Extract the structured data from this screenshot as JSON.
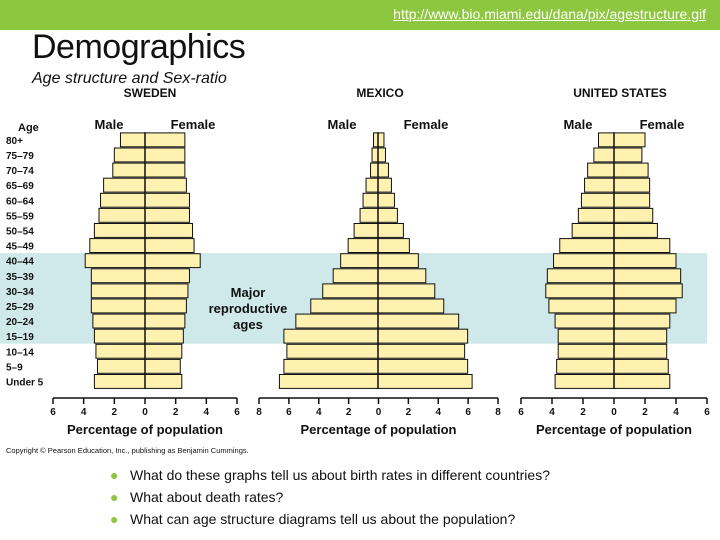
{
  "slide": {
    "url": "http://www.bio.miami.edu/dana/pix/agestructure.gif",
    "title": "Demographics",
    "subtitle": "Age structure and Sex-ratio",
    "copyright": "Copyright © Pearson Education, Inc., publishing as Benjamin Cummings.",
    "bullets": [
      "What do these graphs tell us about birth rates in different countries?",
      "What about death rates?",
      "What can age structure diagrams tell us about the population?"
    ],
    "accent_color": "#8dc63f",
    "bar_color": "#fff1b0",
    "band_color": "#cfe8ea"
  },
  "chart_data": {
    "type": "bar",
    "orientation": "horizontal-pyramid",
    "age_axis_label": "Age",
    "age_groups": [
      "Under 5",
      "5–9",
      "10–14",
      "15–19",
      "20–24",
      "25–29",
      "30–34",
      "35–39",
      "40–44",
      "45–49",
      "50–54",
      "55–59",
      "60–64",
      "65–69",
      "70–74",
      "75–79",
      "80+"
    ],
    "band_label": [
      "Major",
      "reproductive",
      "ages"
    ],
    "band_range": [
      "15–19",
      "40–44"
    ],
    "xlabel": "Percentage of population",
    "male_label": "Male",
    "female_label": "Female",
    "countries": [
      {
        "name": "SWEDEN",
        "xlim": 6,
        "ticks": [
          "6",
          "4",
          "2",
          "0",
          "2",
          "4",
          "6"
        ],
        "male": [
          3.3,
          3.1,
          3.2,
          3.3,
          3.4,
          3.5,
          3.5,
          3.5,
          3.9,
          3.6,
          3.3,
          3.0,
          2.9,
          2.7,
          2.1,
          2.0,
          1.6
        ],
        "female": [
          2.4,
          2.3,
          2.4,
          2.5,
          2.6,
          2.7,
          2.8,
          2.9,
          3.6,
          3.2,
          3.1,
          2.9,
          2.9,
          2.7,
          2.6,
          2.6,
          2.6
        ]
      },
      {
        "name": "MEXICO",
        "xlim": 8,
        "ticks": [
          "8",
          "6",
          "4",
          "2",
          "0",
          "2",
          "4",
          "6",
          "8"
        ],
        "male": [
          6.6,
          6.3,
          6.1,
          6.3,
          5.5,
          4.5,
          3.7,
          3.0,
          2.5,
          2.0,
          1.6,
          1.2,
          1.0,
          0.8,
          0.5,
          0.4,
          0.3
        ],
        "female": [
          6.3,
          6.0,
          5.8,
          6.0,
          5.4,
          4.4,
          3.8,
          3.2,
          2.7,
          2.1,
          1.7,
          1.3,
          1.1,
          0.9,
          0.7,
          0.5,
          0.4
        ]
      },
      {
        "name": "UNITED STATES",
        "xlim": 6,
        "ticks": [
          "6",
          "4",
          "2",
          "0",
          "2",
          "4",
          "6"
        ],
        "male": [
          3.8,
          3.7,
          3.6,
          3.6,
          3.8,
          4.2,
          4.4,
          4.3,
          3.9,
          3.5,
          2.7,
          2.3,
          2.1,
          1.9,
          1.7,
          1.3,
          1.0
        ],
        "female": [
          3.6,
          3.5,
          3.4,
          3.4,
          3.6,
          4.0,
          4.4,
          4.3,
          4.0,
          3.6,
          2.8,
          2.5,
          2.3,
          2.3,
          2.2,
          1.8,
          2.0
        ]
      }
    ]
  }
}
